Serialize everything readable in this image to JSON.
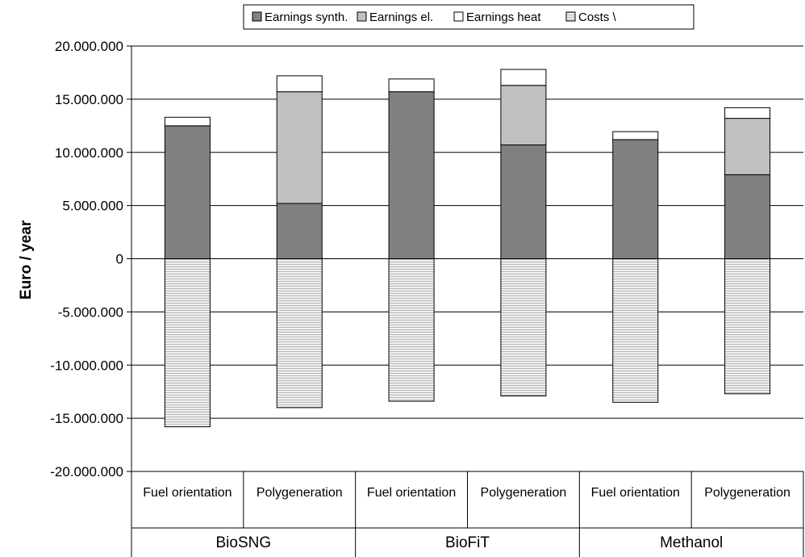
{
  "chart_data": {
    "type": "bar",
    "stacked": true,
    "ylabel": "Euro / year",
    "ylim": [
      -20000000,
      20000000
    ],
    "yticks": [
      20000000,
      15000000,
      10000000,
      5000000,
      0,
      -5000000,
      -10000000,
      -15000000,
      -20000000
    ],
    "ytick_labels": [
      "20.000.000",
      "15.000.000",
      "10.000.000",
      "5.000.000",
      "0",
      "-5.000.000",
      "-10.000.000",
      "-15.000.000",
      "-20.000.000"
    ],
    "grid": "horizontal",
    "legend_position": "top",
    "categories": [
      "Fuel orientation",
      "Polygeneration",
      "Fuel orientation",
      "Polygeneration",
      "Fuel orientation",
      "Polygeneration"
    ],
    "groups": [
      {
        "label": "BioSNG",
        "categories": [
          0,
          1
        ]
      },
      {
        "label": "BioFiT",
        "categories": [
          2,
          3
        ]
      },
      {
        "label": "Methanol",
        "categories": [
          4,
          5
        ]
      }
    ],
    "series": [
      {
        "name": "Earnings synth.",
        "color": "#808080",
        "pattern": "solid",
        "values": [
          12500000,
          5200000,
          15700000,
          10700000,
          11200000,
          7900000
        ]
      },
      {
        "name": "Earnings el.",
        "color": "#c0c0c0",
        "pattern": "solid",
        "values": [
          0,
          10500000,
          0,
          5600000,
          0,
          5300000
        ]
      },
      {
        "name": "Earnings heat",
        "color": "#ffffff",
        "pattern": "solid",
        "values": [
          800000,
          1500000,
          1200000,
          1500000,
          750000,
          1000000
        ]
      },
      {
        "name": "Costs",
        "legend_text": "Costs \\",
        "color": "#e8e8e8",
        "pattern": "horizontal-lines",
        "values": [
          -15800000,
          -14000000,
          -13400000,
          -12900000,
          -13500000,
          -12700000
        ]
      }
    ]
  }
}
